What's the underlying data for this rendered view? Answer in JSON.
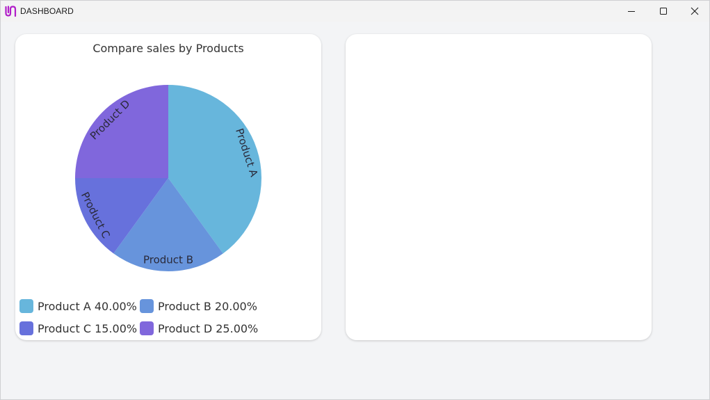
{
  "window": {
    "title": "DASHBOARD",
    "icon": "app-logo-icon",
    "controls": [
      "minimize-icon",
      "maximize-icon",
      "close-icon"
    ]
  },
  "colors": {
    "product_a": "#67b6dc",
    "product_b": "#6794dc",
    "product_c": "#6771dc",
    "product_d": "#8067dc",
    "logo": "#b01ec8"
  },
  "chart_data": {
    "type": "pie",
    "title": "Compare sales by Products",
    "categories": [
      "Product A",
      "Product B",
      "Product C",
      "Product D"
    ],
    "values": [
      40,
      20,
      15,
      25
    ],
    "slice_labels": [
      "Product A",
      "Product B",
      "Product C",
      "Product D"
    ],
    "legend": [
      "Product A 40.00%",
      "Product B 20.00%",
      "Product C 15.00%",
      "Product D 25.00%"
    ],
    "legend_position": "bottom"
  }
}
